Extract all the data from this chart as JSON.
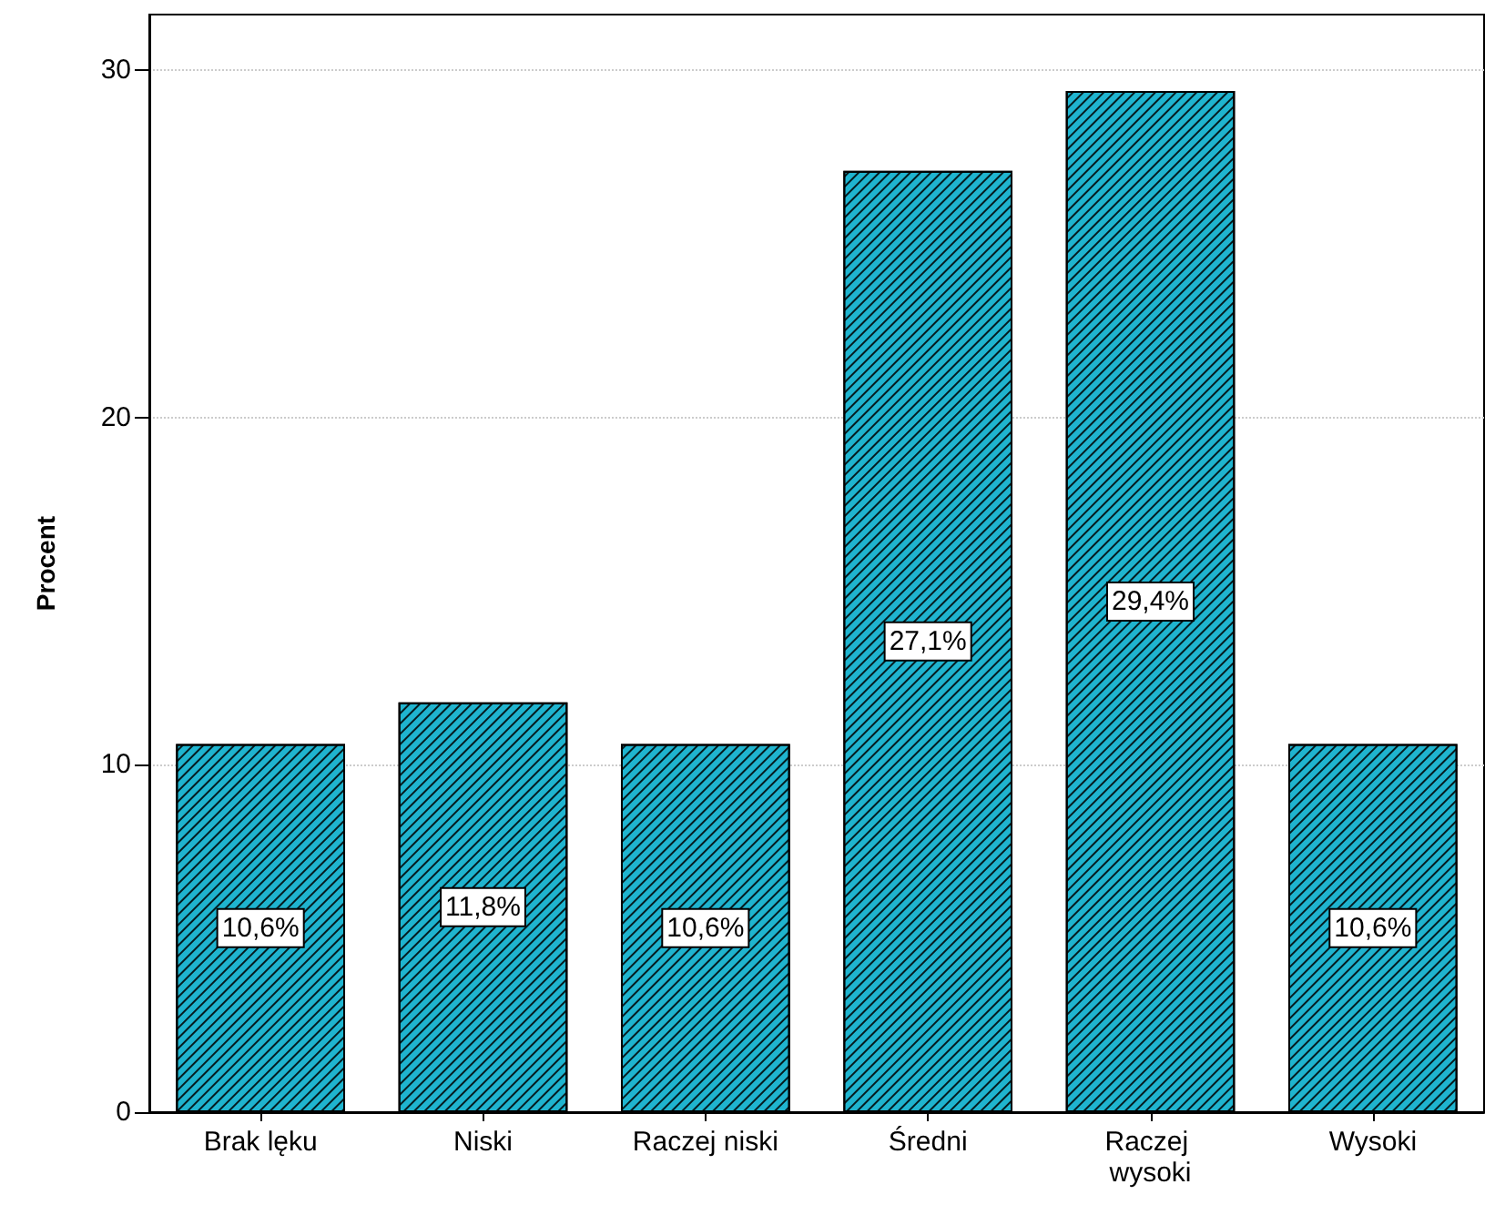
{
  "chart_data": {
    "type": "bar",
    "ylabel": "Procent",
    "categories": [
      "Brak lęku",
      "Niski",
      "Raczej niski",
      "Średni",
      "Raczej wysoki",
      "Wysoki"
    ],
    "values": [
      10.6,
      11.8,
      10.6,
      27.1,
      29.4,
      10.6
    ],
    "value_labels": [
      "10,6%",
      "11,8%",
      "10,6%",
      "27,1%",
      "29,4%",
      "10,6%"
    ],
    "color": "#1fb4cf",
    "ylim": [
      0,
      31.6
    ],
    "yticks": [
      0,
      10,
      20,
      30
    ],
    "grid": "y"
  }
}
